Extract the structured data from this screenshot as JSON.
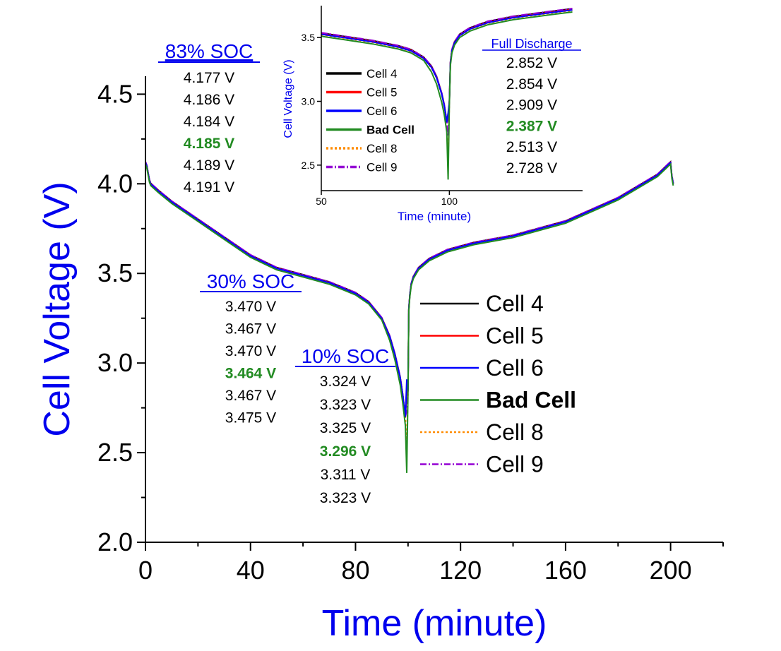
{
  "chart_data": [
    {
      "type": "line",
      "xlabel": "Time (minute)",
      "ylabel": "Cell Voltage (V)",
      "xlim": [
        0,
        220
      ],
      "ylim": [
        2.0,
        4.6
      ],
      "xticks": [
        "0",
        "40",
        "80",
        "120",
        "160",
        "200"
      ],
      "yticks": [
        "2.0",
        "2.5",
        "3.0",
        "3.5",
        "4.0",
        "4.5"
      ],
      "grid": false,
      "legend_position": "right",
      "base_curve": {
        "x": [
          0,
          0.5,
          1,
          1.5,
          2,
          5,
          10,
          20,
          30,
          40,
          50,
          60,
          70,
          80,
          85,
          90,
          93,
          95,
          97,
          98,
          99,
          99.5,
          100,
          100.3,
          100.7,
          101.2,
          102,
          104,
          108,
          115,
          125,
          140,
          160,
          180,
          195,
          200,
          200.5,
          201
        ],
        "y": [
          4.12,
          4.1,
          4.06,
          4.02,
          4.0,
          3.96,
          3.9,
          3.8,
          3.7,
          3.6,
          3.53,
          3.49,
          3.45,
          3.39,
          3.34,
          3.25,
          3.15,
          3.05,
          2.92,
          2.82,
          2.7,
          2.6,
          2.85,
          3.3,
          3.38,
          3.44,
          3.48,
          3.53,
          3.58,
          3.63,
          3.67,
          3.71,
          3.79,
          3.92,
          4.05,
          4.12,
          4.04,
          4.0
        ]
      },
      "series": [
        {
          "name": "Cell 4",
          "color": "#000000",
          "dash": "solid",
          "end_voltage": 2.852
        },
        {
          "name": "Cell 5",
          "color": "#ff0000",
          "dash": "solid",
          "end_voltage": 2.854
        },
        {
          "name": "Cell 6",
          "color": "#0000ff",
          "dash": "solid",
          "end_voltage": 2.909
        },
        {
          "name": "Bad Cell",
          "color": "#228b22",
          "dash": "solid",
          "end_voltage": 2.387
        },
        {
          "name": "Cell 8",
          "color": "#ff8c00",
          "dash": "dotted",
          "end_voltage": 2.513
        },
        {
          "name": "Cell 9",
          "color": "#9400d3",
          "dash": "dashdot",
          "end_voltage": 2.728
        }
      ],
      "annotations": [
        {
          "label": "83% SOC",
          "values": [
            "4.177 V",
            "4.186 V",
            "4.184 V",
            "4.185 V",
            "4.189 V",
            "4.191 V"
          ],
          "highlight_index": 3
        },
        {
          "label": "30% SOC",
          "values": [
            "3.470 V",
            "3.467 V",
            "3.470 V",
            "3.464 V",
            "3.467 V",
            "3.475 V"
          ],
          "highlight_index": 3
        },
        {
          "label": "10% SOC",
          "values": [
            "3.324 V",
            "3.323 V",
            "3.325 V",
            "3.296 V",
            "3.311 V",
            "3.323 V"
          ],
          "highlight_index": 3
        }
      ]
    },
    {
      "type": "line",
      "role": "inset",
      "xlabel": "Time (minute)",
      "ylabel": "Cell Voltage (V)",
      "xlim": [
        50,
        152
      ],
      "ylim": [
        2.3,
        3.75
      ],
      "xticks": [
        "50",
        "100"
      ],
      "yticks": [
        "2.5",
        "3.0",
        "3.5"
      ],
      "annotation": {
        "label": "Full Discharge",
        "values": [
          "2.852 V",
          "2.854 V",
          "2.909 V",
          "2.387 V",
          "2.513 V",
          "2.728 V"
        ],
        "highlight_index": 3
      }
    }
  ],
  "colors": {
    "axis_title": "#0000ee",
    "annotation_head": "#0000ee",
    "highlight": "#228b22"
  }
}
